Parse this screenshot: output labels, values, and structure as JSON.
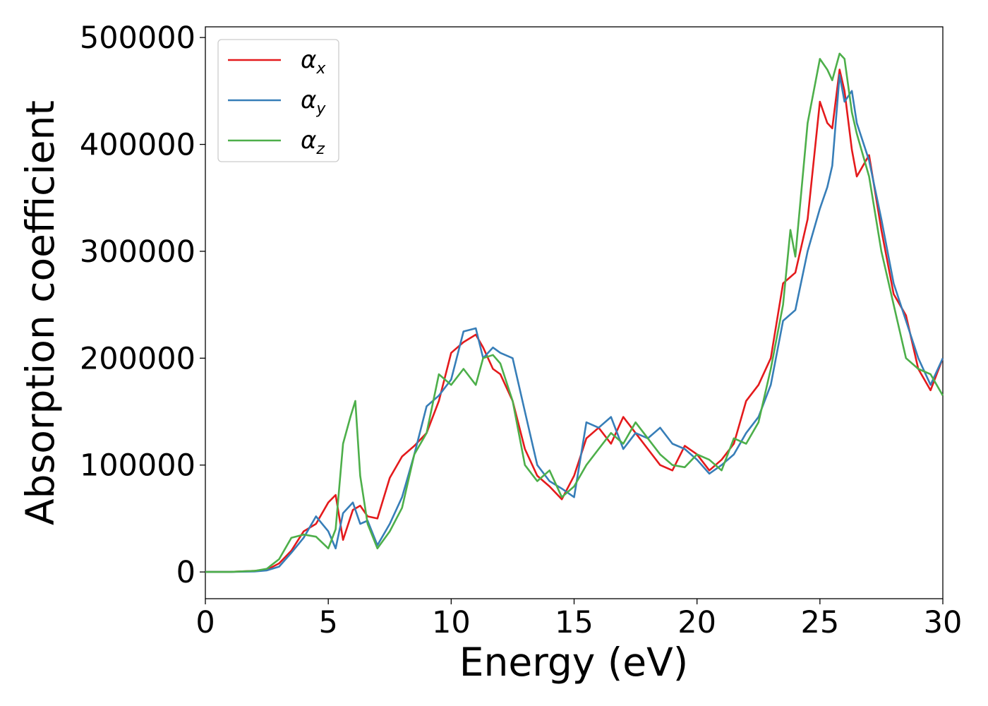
{
  "chart_data": {
    "type": "line",
    "title": "",
    "xlabel": "Energy (eV)",
    "ylabel": "Absorption coefficient",
    "xlim": [
      0,
      30
    ],
    "ylim": [
      -25000,
      510000
    ],
    "xticks": [
      0,
      5,
      10,
      15,
      20,
      25,
      30
    ],
    "xtick_labels": [
      "0",
      "5",
      "10",
      "15",
      "20",
      "25",
      "30"
    ],
    "yticks": [
      0,
      100000,
      200000,
      300000,
      400000,
      500000
    ],
    "ytick_labels": [
      "0",
      "100000",
      "200000",
      "300000",
      "400000",
      "500000"
    ],
    "grid": false,
    "legend_position": "top-left",
    "series": [
      {
        "name": "αx",
        "base": "α",
        "sub": "x",
        "color": "#e41a1c",
        "x": [
          0,
          1,
          2,
          2.5,
          3,
          3.5,
          4,
          4.5,
          5,
          5.3,
          5.6,
          6,
          6.3,
          6.6,
          7,
          7.5,
          8,
          8.5,
          9,
          9.5,
          10,
          10.5,
          11,
          11.3,
          11.7,
          12,
          12.5,
          13,
          13.5,
          14,
          14.5,
          15,
          15.5,
          16,
          16.5,
          17,
          17.5,
          18,
          18.5,
          19,
          19.5,
          20,
          20.5,
          21,
          21.5,
          22,
          22.5,
          23,
          23.5,
          24,
          24.5,
          25,
          25.3,
          25.5,
          25.8,
          26,
          26.3,
          26.5,
          27,
          27.5,
          28,
          28.5,
          29,
          29.5,
          30
        ],
        "y": [
          0,
          0,
          1000,
          2000,
          8000,
          20000,
          38000,
          45000,
          65000,
          72000,
          30000,
          58000,
          62000,
          52000,
          50000,
          88000,
          108000,
          118000,
          130000,
          160000,
          205000,
          215000,
          222000,
          210000,
          190000,
          185000,
          160000,
          115000,
          90000,
          80000,
          68000,
          90000,
          125000,
          135000,
          120000,
          145000,
          130000,
          115000,
          100000,
          95000,
          118000,
          110000,
          95000,
          105000,
          120000,
          160000,
          175000,
          200000,
          270000,
          280000,
          330000,
          440000,
          420000,
          415000,
          470000,
          450000,
          395000,
          370000,
          390000,
          320000,
          260000,
          240000,
          190000,
          170000,
          200000
        ]
      },
      {
        "name": "αy",
        "base": "α",
        "sub": "y",
        "color": "#377eb8",
        "x": [
          0,
          1,
          2,
          2.5,
          3,
          3.5,
          4,
          4.5,
          5,
          5.3,
          5.6,
          6,
          6.3,
          6.6,
          7,
          7.5,
          8,
          8.5,
          9,
          9.5,
          10,
          10.5,
          11,
          11.3,
          11.7,
          12,
          12.5,
          13,
          13.5,
          14,
          14.5,
          15,
          15.5,
          16,
          16.5,
          17,
          17.5,
          18,
          18.5,
          19,
          19.5,
          20,
          20.5,
          21,
          21.5,
          22,
          22.5,
          23,
          23.5,
          24,
          24.5,
          25,
          25.3,
          25.5,
          25.8,
          26,
          26.3,
          26.5,
          27,
          27.5,
          28,
          28.5,
          29,
          29.5,
          30
        ],
        "y": [
          0,
          0,
          500,
          1500,
          5000,
          18000,
          32000,
          52000,
          38000,
          22000,
          55000,
          65000,
          45000,
          48000,
          25000,
          45000,
          70000,
          110000,
          155000,
          165000,
          180000,
          225000,
          228000,
          200000,
          210000,
          205000,
          200000,
          150000,
          100000,
          85000,
          78000,
          70000,
          140000,
          135000,
          145000,
          115000,
          130000,
          125000,
          135000,
          120000,
          115000,
          105000,
          92000,
          100000,
          110000,
          130000,
          145000,
          175000,
          235000,
          245000,
          300000,
          340000,
          360000,
          380000,
          465000,
          440000,
          450000,
          420000,
          385000,
          330000,
          270000,
          235000,
          200000,
          175000,
          200000
        ]
      },
      {
        "name": "αz",
        "base": "α",
        "sub": "z",
        "color": "#4daf4a",
        "x": [
          0,
          1,
          2,
          2.5,
          3,
          3.5,
          4,
          4.5,
          5,
          5.3,
          5.6,
          5.9,
          6.1,
          6.3,
          6.6,
          7,
          7.5,
          8,
          8.5,
          9,
          9.5,
          10,
          10.5,
          11,
          11.3,
          11.7,
          12,
          12.5,
          13,
          13.5,
          14,
          14.5,
          15,
          15.5,
          16,
          16.5,
          17,
          17.5,
          18,
          18.5,
          19,
          19.5,
          20,
          20.5,
          21,
          21.5,
          22,
          22.5,
          23,
          23.5,
          23.8,
          24,
          24.5,
          25,
          25.3,
          25.5,
          25.8,
          26,
          26.3,
          26.5,
          27,
          27.5,
          28,
          28.5,
          29,
          29.5,
          30
        ],
        "y": [
          0,
          0,
          1000,
          3000,
          12000,
          32000,
          35000,
          33000,
          22000,
          40000,
          120000,
          145000,
          160000,
          90000,
          45000,
          22000,
          38000,
          60000,
          110000,
          130000,
          185000,
          175000,
          190000,
          175000,
          200000,
          203000,
          195000,
          160000,
          100000,
          85000,
          95000,
          70000,
          80000,
          100000,
          115000,
          130000,
          120000,
          140000,
          125000,
          110000,
          100000,
          98000,
          110000,
          105000,
          95000,
          125000,
          120000,
          140000,
          190000,
          250000,
          320000,
          295000,
          420000,
          480000,
          470000,
          460000,
          485000,
          480000,
          430000,
          410000,
          370000,
          300000,
          250000,
          200000,
          190000,
          185000,
          165000
        ]
      }
    ]
  }
}
